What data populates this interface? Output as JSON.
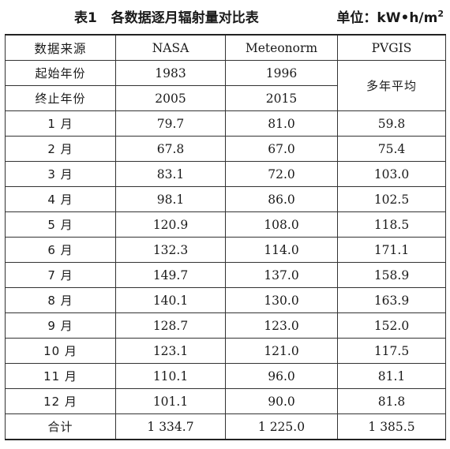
{
  "caption": {
    "number": "表1",
    "title": "各数据逐月辐射量对比表",
    "unit_main": "单位：kW•h/m",
    "unit_sup": "2"
  },
  "table": {
    "header": [
      "数据来源",
      "NASA",
      "Meteonorm",
      "PVGIS"
    ],
    "start_year": {
      "label": "起始年份",
      "nasa": "1983",
      "meteonorm": "1996"
    },
    "end_year": {
      "label": "终止年份",
      "nasa": "2005",
      "meteonorm": "2015"
    },
    "pvgis_years": "多年平均",
    "months": [
      {
        "label": "1 月",
        "nasa": "79.7",
        "meteonorm": "81.0",
        "pvgis": "59.8"
      },
      {
        "label": "2 月",
        "nasa": "67.8",
        "meteonorm": "67.0",
        "pvgis": "75.4"
      },
      {
        "label": "3 月",
        "nasa": "83.1",
        "meteonorm": "72.0",
        "pvgis": "103.0"
      },
      {
        "label": "4 月",
        "nasa": "98.1",
        "meteonorm": "86.0",
        "pvgis": "102.5"
      },
      {
        "label": "5 月",
        "nasa": "120.9",
        "meteonorm": "108.0",
        "pvgis": "118.5"
      },
      {
        "label": "6 月",
        "nasa": "132.3",
        "meteonorm": "114.0",
        "pvgis": "171.1"
      },
      {
        "label": "7 月",
        "nasa": "149.7",
        "meteonorm": "137.0",
        "pvgis": "158.9"
      },
      {
        "label": "8 月",
        "nasa": "140.1",
        "meteonorm": "130.0",
        "pvgis": "163.9"
      },
      {
        "label": "9 月",
        "nasa": "128.7",
        "meteonorm": "123.0",
        "pvgis": "152.0"
      },
      {
        "label": "10 月",
        "nasa": "123.1",
        "meteonorm": "121.0",
        "pvgis": "117.5"
      },
      {
        "label": "11 月",
        "nasa": "110.1",
        "meteonorm": "96.0",
        "pvgis": "81.1"
      },
      {
        "label": "12 月",
        "nasa": "101.1",
        "meteonorm": "90.0",
        "pvgis": "81.8"
      }
    ],
    "total": {
      "label": "合计",
      "nasa": "1 334.7",
      "meteonorm": "1 225.0",
      "pvgis": "1 385.5"
    }
  }
}
